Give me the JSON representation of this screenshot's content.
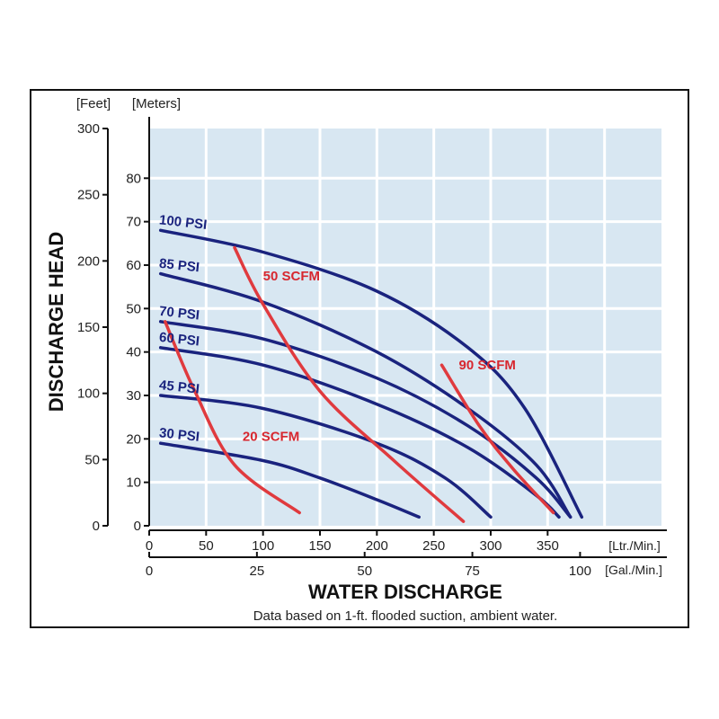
{
  "chart_data": {
    "type": "line",
    "title": "",
    "left_axis_feet": {
      "unit_label": "[Feet]",
      "ticks": [
        0,
        50,
        100,
        150,
        200,
        250,
        300
      ],
      "range": [
        0,
        300
      ]
    },
    "left_axis_meters": {
      "unit_label": "[Meters]",
      "ticks": [
        0,
        10,
        20,
        30,
        40,
        50,
        60,
        70,
        80
      ],
      "range": [
        0,
        91.44
      ]
    },
    "ylabel": "DISCHARGE HEAD",
    "bottom_axis_ltr": {
      "unit_label": "[Ltr./Min.]",
      "ticks": [
        0,
        50,
        100,
        150,
        200,
        250,
        300,
        350
      ],
      "range": [
        0,
        450
      ]
    },
    "bottom_axis_gal": {
      "unit_label": "[Gal./Min.]",
      "ticks": [
        0,
        25,
        50,
        75,
        100
      ]
    },
    "xlabel": "WATER DISCHARGE",
    "footnote": "Data based on 1-ft. flooded suction, ambient water.",
    "grid": true,
    "colors": {
      "background": "#d8e7f2",
      "grid": "#ffffff",
      "pressure_curve": "#1a237e",
      "air_curve": "#e03a3e",
      "air_label": "#d7272f"
    },
    "series": [
      {
        "name": "100 PSI",
        "kind": "pressure",
        "x": [
          10,
          100,
          200,
          280,
          330,
          380
        ],
        "y": [
          68,
          63,
          54,
          41,
          27,
          2
        ]
      },
      {
        "name": "85 PSI",
        "kind": "pressure",
        "x": [
          10,
          100,
          200,
          280,
          340,
          370
        ],
        "y": [
          58,
          51.5,
          40,
          27,
          14,
          2
        ]
      },
      {
        "name": "70 PSI",
        "kind": "pressure",
        "x": [
          10,
          100,
          200,
          280,
          340,
          370
        ],
        "y": [
          47,
          43,
          34,
          23,
          11,
          2
        ]
      },
      {
        "name": "60 PSI",
        "kind": "pressure",
        "x": [
          10,
          100,
          200,
          280,
          340,
          360
        ],
        "y": [
          41,
          37,
          28,
          18,
          7,
          2
        ]
      },
      {
        "name": "45 PSI",
        "kind": "pressure",
        "x": [
          10,
          100,
          200,
          260,
          300
        ],
        "y": [
          30,
          27,
          19,
          11,
          2
        ]
      },
      {
        "name": "30 PSI",
        "kind": "pressure",
        "x": [
          10,
          100,
          150,
          200,
          237
        ],
        "y": [
          19,
          15,
          11,
          6,
          2
        ]
      },
      {
        "name": "20 SCFM",
        "kind": "air",
        "x": [
          14,
          40,
          75,
          132
        ],
        "y": [
          47,
          31,
          14,
          3
        ]
      },
      {
        "name": "50 SCFM",
        "kind": "air",
        "x": [
          75,
          100,
          150,
          215,
          276
        ],
        "y": [
          64,
          51,
          31,
          15,
          1
        ]
      },
      {
        "name": "90 SCFM",
        "kind": "air",
        "x": [
          257,
          290,
          320,
          355
        ],
        "y": [
          37,
          23,
          13,
          3
        ]
      }
    ]
  }
}
